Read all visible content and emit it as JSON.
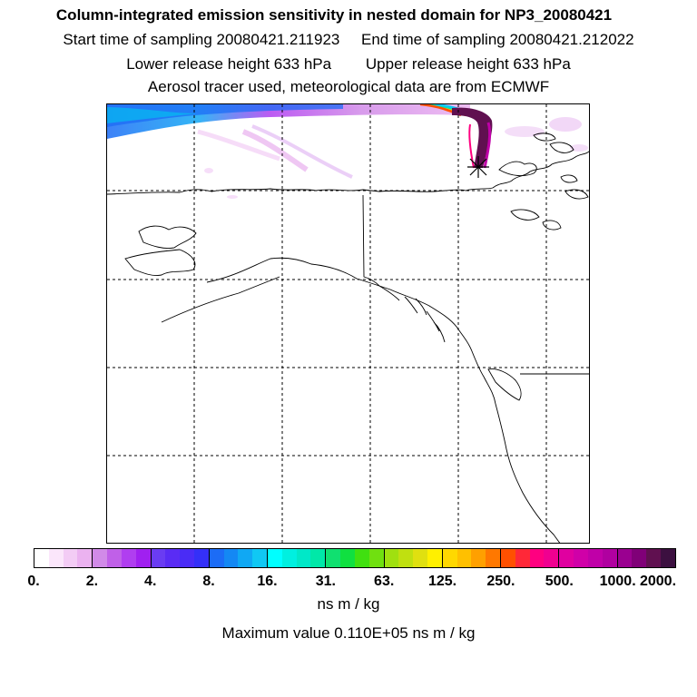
{
  "titles": {
    "main": "Column-integrated emission sensitivity in nested domain for NP3_20080421",
    "start": "Start time of sampling 20080421.211923",
    "end": "End time of sampling 20080421.212022",
    "lower": "Lower release height  633 hPa",
    "upper": "Upper release height  633 hPa",
    "info": "Aerosol tracer used, meteorological data are from ECMWF"
  },
  "colorbar": {
    "ticks": [
      "0.",
      "2.",
      "4.",
      "8.",
      "16.",
      "31.",
      "63.",
      "125.",
      "250.",
      "500.",
      "1000.",
      "2000."
    ],
    "unit": "ns m / kg",
    "colors": [
      "#ffffff",
      "#fbe6fb",
      "#f3ccf5",
      "#ebb2f0",
      "#d18ae8",
      "#c060e8",
      "#b03ef0",
      "#a020f0",
      "#6a3cf2",
      "#5a2cf4",
      "#4a2cf6",
      "#3430f8",
      "#1c6cf6",
      "#1488f4",
      "#10a8f4",
      "#10c8f4",
      "#00ffff",
      "#00f0e0",
      "#00e8c8",
      "#00e8a8",
      "#10e070",
      "#10e040",
      "#40e010",
      "#70e010",
      "#a0e010",
      "#c0e010",
      "#e0e010",
      "#fff000",
      "#ffd800",
      "#ffc000",
      "#ffa000",
      "#ff7800",
      "#ff5000",
      "#ff2838",
      "#ff0080",
      "#f00090",
      "#e000a0",
      "#d000a8",
      "#c000a8",
      "#b000a0",
      "#9a0090",
      "#800078",
      "#601050",
      "#3c1040"
    ],
    "major_every": 4
  },
  "maximum": "Maximum value  0.110E+05 ns m / kg",
  "release_site_icon": "asterisk-icon"
}
